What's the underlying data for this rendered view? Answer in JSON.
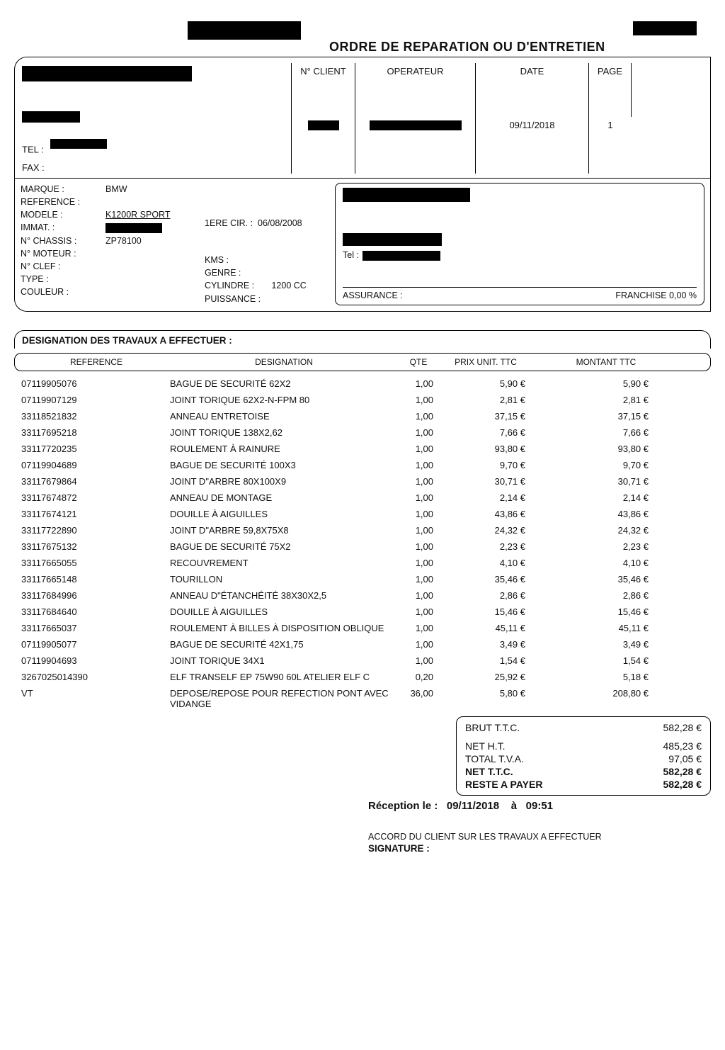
{
  "title": "ORDRE DE REPARATION OU D'ENTRETIEN",
  "company": {
    "tel_label": "TEL :",
    "fax_label": "FAX :"
  },
  "header": {
    "n_client_label": "N° CLIENT",
    "operateur_label": "OPERATEUR",
    "date_label": "DATE",
    "page_label": "PAGE",
    "date": "09/11/2018",
    "page": "1"
  },
  "vehicle": {
    "labels": {
      "marque": "MARQUE :",
      "reference": "REFERENCE :",
      "modele": "MODELE :",
      "immat": "IMMAT. :",
      "chassis": "N° CHASSIS :",
      "moteur": "N° MOTEUR :",
      "clef": "N° CLEF :",
      "type": "TYPE :",
      "couleur": "COULEUR :"
    },
    "marque": "BMW",
    "modele": "K1200R SPORT",
    "chassis": "ZP78100",
    "mid": {
      "premiere_cir_label": "1ERE CIR. :",
      "premiere_cir": "06/08/2008",
      "kms_label": "KMS :",
      "genre_label": "GENRE :",
      "cylindre_label": "CYLINDRE :",
      "cylindre": "1200 CC",
      "puissance_label": "PUISSANCE :"
    },
    "right": {
      "tel_label": "Tel :",
      "assurance_label": "ASSURANCE :",
      "franchise_label": "FRANCHISE",
      "franchise": "0,00 %"
    }
  },
  "section_title": "DESIGNATION DES TRAVAUX A EFFECTUER :",
  "columns": {
    "reference": "REFERENCE",
    "designation": "DESIGNATION",
    "qte": "QTE",
    "prix_unit": "PRIX UNIT. TTC",
    "montant": "MONTANT TTC"
  },
  "items": [
    {
      "ref": "07119905076",
      "des": "BAGUE DE SECURITÉ 62X2",
      "qte": "1,00",
      "pu": "5,90 €",
      "mt": "5,90 €"
    },
    {
      "ref": "07119907129",
      "des": "JOINT TORIQUE 62X2-N-FPM 80",
      "qte": "1,00",
      "pu": "2,81 €",
      "mt": "2,81 €"
    },
    {
      "ref": "33118521832",
      "des": "ANNEAU ENTRETOISE",
      "qte": "1,00",
      "pu": "37,15 €",
      "mt": "37,15 €"
    },
    {
      "ref": "33117695218",
      "des": "JOINT TORIQUE 138X2,62",
      "qte": "1,00",
      "pu": "7,66 €",
      "mt": "7,66 €"
    },
    {
      "ref": "33117720235",
      "des": "ROULEMENT À RAINURE",
      "qte": "1,00",
      "pu": "93,80 €",
      "mt": "93,80 €"
    },
    {
      "ref": "07119904689",
      "des": "BAGUE DE SECURITÉ 100X3",
      "qte": "1,00",
      "pu": "9,70 €",
      "mt": "9,70 €"
    },
    {
      "ref": "33117679864",
      "des": "JOINT D\"ARBRE 80X100X9",
      "qte": "1,00",
      "pu": "30,71 €",
      "mt": "30,71 €"
    },
    {
      "ref": "33117674872",
      "des": "ANNEAU DE MONTAGE",
      "qte": "1,00",
      "pu": "2,14 €",
      "mt": "2,14 €"
    },
    {
      "ref": "33117674121",
      "des": "DOUILLE À AIGUILLES",
      "qte": "1,00",
      "pu": "43,86 €",
      "mt": "43,86 €"
    },
    {
      "ref": "33117722890",
      "des": "JOINT D\"ARBRE 59,8X75X8",
      "qte": "1,00",
      "pu": "24,32 €",
      "mt": "24,32 €"
    },
    {
      "ref": "33117675132",
      "des": "BAGUE DE SECURITÉ 75X2",
      "qte": "1,00",
      "pu": "2,23 €",
      "mt": "2,23 €"
    },
    {
      "ref": "33117665055",
      "des": "RECOUVREMENT",
      "qte": "1,00",
      "pu": "4,10 €",
      "mt": "4,10 €"
    },
    {
      "ref": "33117665148",
      "des": "TOURILLON",
      "qte": "1,00",
      "pu": "35,46 €",
      "mt": "35,46 €"
    },
    {
      "ref": "33117684996",
      "des": "ANNEAU D\"ÉTANCHÉITÉ 38X30X2,5",
      "qte": "1,00",
      "pu": "2,86 €",
      "mt": "2,86 €"
    },
    {
      "ref": "33117684640",
      "des": "DOUILLE À AIGUILLES",
      "qte": "1,00",
      "pu": "15,46 €",
      "mt": "15,46 €"
    },
    {
      "ref": "33117665037",
      "des": "ROULEMENT À BILLES À DISPOSITION OBLIQUE",
      "qte": "1,00",
      "pu": "45,11 €",
      "mt": "45,11 €"
    },
    {
      "ref": "07119905077",
      "des": "BAGUE DE SECURITÉ 42X1,75",
      "qte": "1,00",
      "pu": "3,49 €",
      "mt": "3,49 €"
    },
    {
      "ref": "07119904693",
      "des": "JOINT TORIQUE 34X1",
      "qte": "1,00",
      "pu": "1,54 €",
      "mt": "1,54 €"
    },
    {
      "ref": "3267025014390",
      "des": "ELF TRANSELF EP 75W90 60L ATELIER ELF C",
      "qte": "0,20",
      "pu": "25,92 €",
      "mt": "5,18 €"
    },
    {
      "ref": "VT",
      "des": "DEPOSE/REPOSE POUR REFECTION PONT AVEC VIDANGE",
      "qte": "36,00",
      "pu": "5,80 €",
      "mt": "208,80 €"
    }
  ],
  "totals": {
    "brut_label": "BRUT T.T.C.",
    "brut": "582,28 €",
    "net_ht_label": "NET H.T.",
    "net_ht": "485,23 €",
    "tva_label": "TOTAL T.V.A.",
    "tva": "97,05 €",
    "net_ttc_label": "NET T.T.C.",
    "net_ttc": "582,28 €",
    "reste_label": "RESTE A PAYER",
    "reste": "582,28 €"
  },
  "reception": {
    "label": "Réception le :",
    "date": "09/11/2018",
    "a": "à",
    "time": "09:51"
  },
  "footer": {
    "accord": "ACCORD DU CLIENT SUR LES TRAVAUX A EFFECTUER",
    "signature": "SIGNATURE :"
  }
}
